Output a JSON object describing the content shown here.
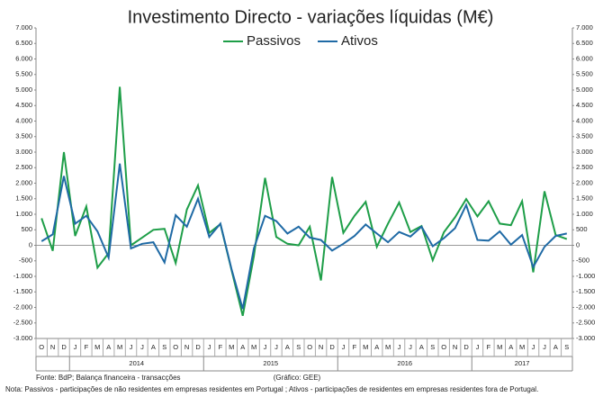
{
  "chart_data": {
    "type": "line",
    "title": "Investimento  Directo - variações líquidas (M€)",
    "categories": [
      "O",
      "N",
      "D",
      "J",
      "F",
      "M",
      "A",
      "M",
      "J",
      "J",
      "A",
      "S",
      "O",
      "N",
      "D",
      "J",
      "F",
      "M",
      "A",
      "M",
      "J",
      "J",
      "A",
      "S",
      "O",
      "N",
      "D",
      "J",
      "F",
      "M",
      "A",
      "M",
      "J",
      "J",
      "A",
      "S",
      "O",
      "N",
      "D",
      "J",
      "F",
      "M",
      "A",
      "M",
      "J",
      "J",
      "A",
      "S"
    ],
    "year_labels": [
      "2014",
      "2015",
      "2016",
      "2017"
    ],
    "series": [
      {
        "name": "Passivos",
        "color": "#1e9e48",
        "values": [
          870,
          -180,
          3000,
          300,
          1250,
          -720,
          -250,
          5100,
          0,
          250,
          500,
          530,
          -570,
          1150,
          1930,
          400,
          680,
          -800,
          -2270,
          -350,
          2170,
          270,
          50,
          0,
          600,
          -1130,
          2200,
          400,
          950,
          1400,
          -50,
          700,
          1380,
          430,
          620,
          -480,
          420,
          900,
          1490,
          930,
          1420,
          700,
          650,
          1420,
          -870,
          1740,
          330,
          200
        ]
      },
      {
        "name": "Ativos",
        "color": "#1f6aa5",
        "values": [
          130,
          350,
          2230,
          700,
          950,
          450,
          -400,
          2630,
          -100,
          50,
          100,
          -550,
          970,
          600,
          1500,
          270,
          700,
          -770,
          -2050,
          -100,
          950,
          780,
          380,
          600,
          250,
          170,
          -170,
          50,
          300,
          670,
          380,
          100,
          430,
          280,
          600,
          -30,
          230,
          550,
          1300,
          170,
          150,
          450,
          20,
          330,
          -700,
          -50,
          300,
          380
        ]
      }
    ],
    "ylim": [
      -3000,
      7000
    ],
    "yticks": [
      {
        "value": -3000,
        "label": "-3.000"
      },
      {
        "value": -2500,
        "label": "-2.500"
      },
      {
        "value": -2000,
        "label": "-2.000"
      },
      {
        "value": -1500,
        "label": "-1.500"
      },
      {
        "value": -1000,
        "label": "-1.000"
      },
      -500,
      0,
      500,
      {
        "value": 1000,
        "label": "1.000"
      },
      {
        "value": 1500,
        "label": "1.500"
      },
      {
        "value": 2000,
        "label": "2.000"
      },
      {
        "value": 2500,
        "label": "2.500"
      },
      {
        "value": 3000,
        "label": "3.000"
      },
      {
        "value": 3500,
        "label": "3.500"
      },
      {
        "value": 4000,
        "label": "4.000"
      },
      {
        "value": 4500,
        "label": "4.500"
      },
      {
        "value": 5000,
        "label": "5.000"
      },
      {
        "value": 5500,
        "label": "5.500"
      },
      {
        "value": 6000,
        "label": "6.000"
      },
      {
        "value": 6500,
        "label": "6.500"
      },
      {
        "value": 7000,
        "label": "7.000"
      }
    ],
    "source": "Fonte:  BdP; Balança financeira - transacções",
    "credit": "(Gráfico: GEE)",
    "note": "Nota: Passivos - participações de não residentes em empresas residentes em Portugal ; Ativos - participações de residentes em empresas residentes fora de Portugal."
  }
}
